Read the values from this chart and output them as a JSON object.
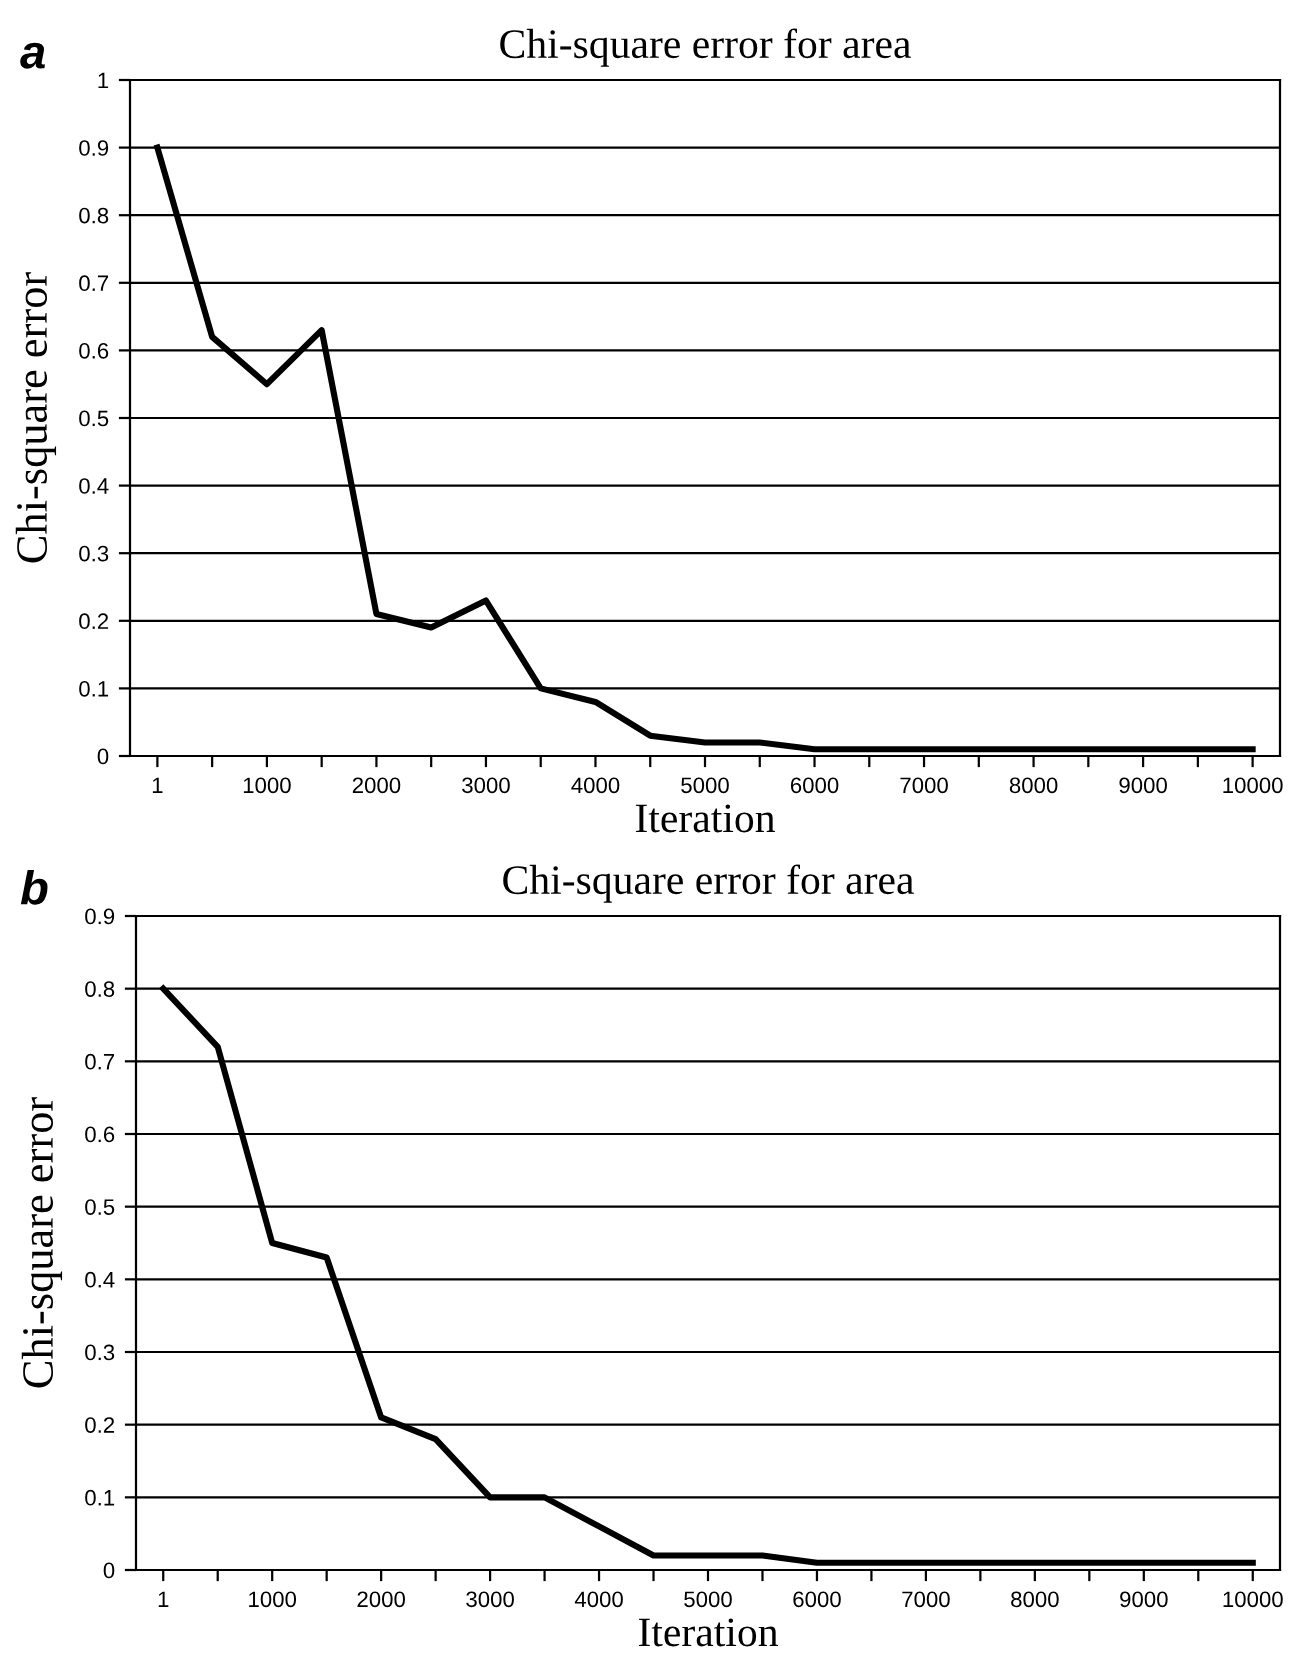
{
  "chart_data": [
    {
      "type": "line",
      "title": "Chi-square error for area",
      "xlabel": "Iteration",
      "ylabel": "Chi-square error",
      "annotations": [
        "a"
      ],
      "categories": [
        "1",
        null,
        "1000",
        null,
        "2000",
        null,
        "3000",
        null,
        "4000",
        null,
        "5000",
        null,
        "6000",
        null,
        "7000",
        null,
        "8000",
        null,
        "9000",
        null,
        "10000"
      ],
      "series": [
        {
          "color": "#000000",
          "values": [
            0.9,
            0.62,
            0.55,
            0.63,
            0.21,
            0.19,
            0.23,
            0.1,
            0.08,
            0.03,
            0.02,
            0.02,
            0.01,
            0.01,
            0.01,
            0.01,
            0.01,
            0.01,
            0.01,
            0.01,
            0.01
          ]
        }
      ],
      "ylim": [
        0,
        1
      ],
      "yticks": [
        0,
        0.1,
        0.2,
        0.3,
        0.4,
        0.5,
        0.6,
        0.7,
        0.8,
        0.9,
        1
      ],
      "grid": "y",
      "marker": "none",
      "line_style": "solid"
    },
    {
      "type": "line",
      "title": "Chi-square error for area",
      "xlabel": "Iteration",
      "ylabel": "Chi-square error",
      "annotations": [
        "b"
      ],
      "categories": [
        "1",
        null,
        "1000",
        null,
        "2000",
        null,
        "3000",
        null,
        "4000",
        null,
        "5000",
        null,
        "6000",
        null,
        "7000",
        null,
        "8000",
        null,
        "9000",
        null,
        "10000"
      ],
      "series": [
        {
          "color": "#000000",
          "values": [
            0.8,
            0.72,
            0.45,
            0.43,
            0.21,
            0.18,
            0.1,
            0.1,
            0.06,
            0.02,
            0.02,
            0.02,
            0.01,
            0.01,
            0.01,
            0.01,
            0.01,
            0.01,
            0.01,
            0.01,
            0.01
          ]
        }
      ],
      "ylim": [
        0,
        0.9
      ],
      "yticks": [
        0,
        0.1,
        0.2,
        0.3,
        0.4,
        0.5,
        0.6,
        0.7,
        0.8,
        0.9
      ],
      "grid": "y",
      "marker": "none",
      "line_style": "solid"
    }
  ]
}
